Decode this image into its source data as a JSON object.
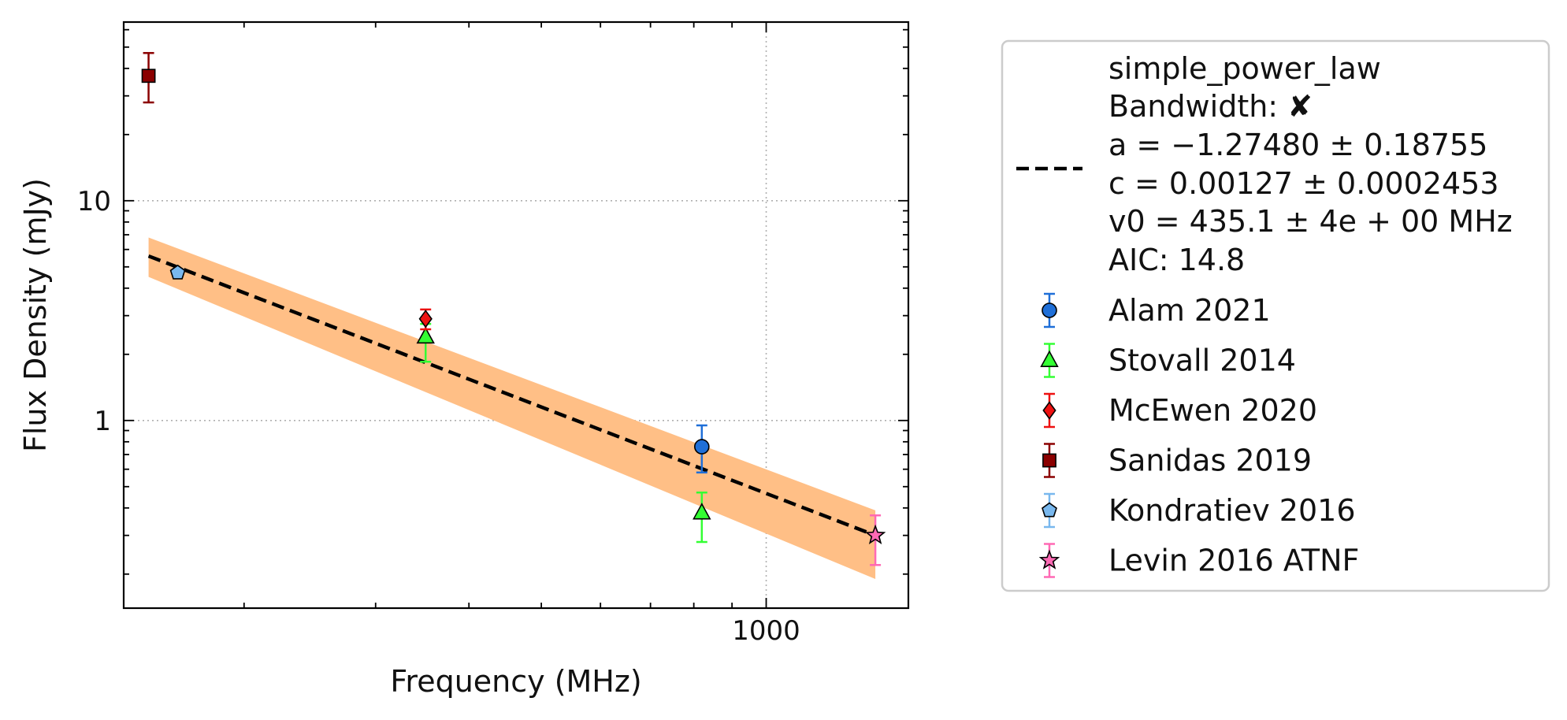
{
  "chart_data": {
    "type": "scatter",
    "xlabel": "Frequency (MHz)",
    "ylabel": "Flux Density (mJy)",
    "xscale": "log",
    "yscale": "log",
    "xlim": [
      138,
      1550
    ],
    "ylim": [
      0.14,
      65
    ],
    "x_ticks": [
      {
        "value": 1000,
        "label": "1000"
      }
    ],
    "y_ticks": [
      {
        "value": 1,
        "label": "1"
      },
      {
        "value": 10,
        "label": "10"
      }
    ],
    "grid": true,
    "legend_position": "outside-right",
    "fit": {
      "name": "simple_power_law",
      "legend_lines": [
        "simple_power_law",
        "Bandwidth: ✘",
        "a = −1.27480 ± 0.18755",
        "c = 0.00127 ± 0.0002453",
        "v0 = 435.1 ± 4e + 00 MHz",
        "AIC: 14.8"
      ],
      "a": -1.2748,
      "c": 0.00127,
      "v0": 435.1,
      "x_range": [
        149,
        1400
      ],
      "line_endpoints": [
        {
          "x": 149,
          "y": 5.6
        },
        {
          "x": 1400,
          "y": 0.3
        }
      ],
      "band_upper": [
        {
          "x": 149,
          "y": 6.8
        },
        {
          "x": 1400,
          "y": 0.39
        }
      ],
      "band_lower": [
        {
          "x": 149,
          "y": 4.5
        },
        {
          "x": 1400,
          "y": 0.19
        }
      ],
      "line_color": "#000000",
      "band_color": "#ffbf86"
    },
    "series": [
      {
        "name": "Alam 2021",
        "marker": "circle",
        "color": "#1f6fd8",
        "err_color": "#1f6fd8",
        "points": [
          {
            "x": 820,
            "y": 0.76,
            "ylo": 0.58,
            "yhi": 0.95
          }
        ]
      },
      {
        "name": "Stovall 2014",
        "marker": "triangle",
        "color": "#33ff33",
        "err_color": "#33ff33",
        "points": [
          {
            "x": 350,
            "y": 2.4,
            "ylo": 1.85,
            "yhi": 2.75
          },
          {
            "x": 820,
            "y": 0.38,
            "ylo": 0.28,
            "yhi": 0.47
          }
        ]
      },
      {
        "name": "McEwen 2020",
        "marker": "diamond",
        "color": "#ee1111",
        "err_color": "#ee1111",
        "points": [
          {
            "x": 350,
            "y": 2.9,
            "ylo": 2.6,
            "yhi": 3.2
          }
        ]
      },
      {
        "name": "Sanidas 2019",
        "marker": "square",
        "color": "#8b0000",
        "err_color": "#8b0000",
        "points": [
          {
            "x": 149,
            "y": 37,
            "ylo": 28,
            "yhi": 47
          }
        ]
      },
      {
        "name": "Kondratiev 2016",
        "marker": "pentagon",
        "color": "#79b8ee",
        "err_color": "#79b8ee",
        "points": [
          {
            "x": 163,
            "y": 4.7,
            "ylo": 4.5,
            "yhi": 4.9
          }
        ]
      },
      {
        "name": "Levin 2016 ATNF",
        "marker": "star",
        "color": "#ff69b4",
        "err_color": "#ff69b4",
        "points": [
          {
            "x": 1400,
            "y": 0.3,
            "ylo": 0.22,
            "yhi": 0.37
          }
        ]
      }
    ]
  }
}
